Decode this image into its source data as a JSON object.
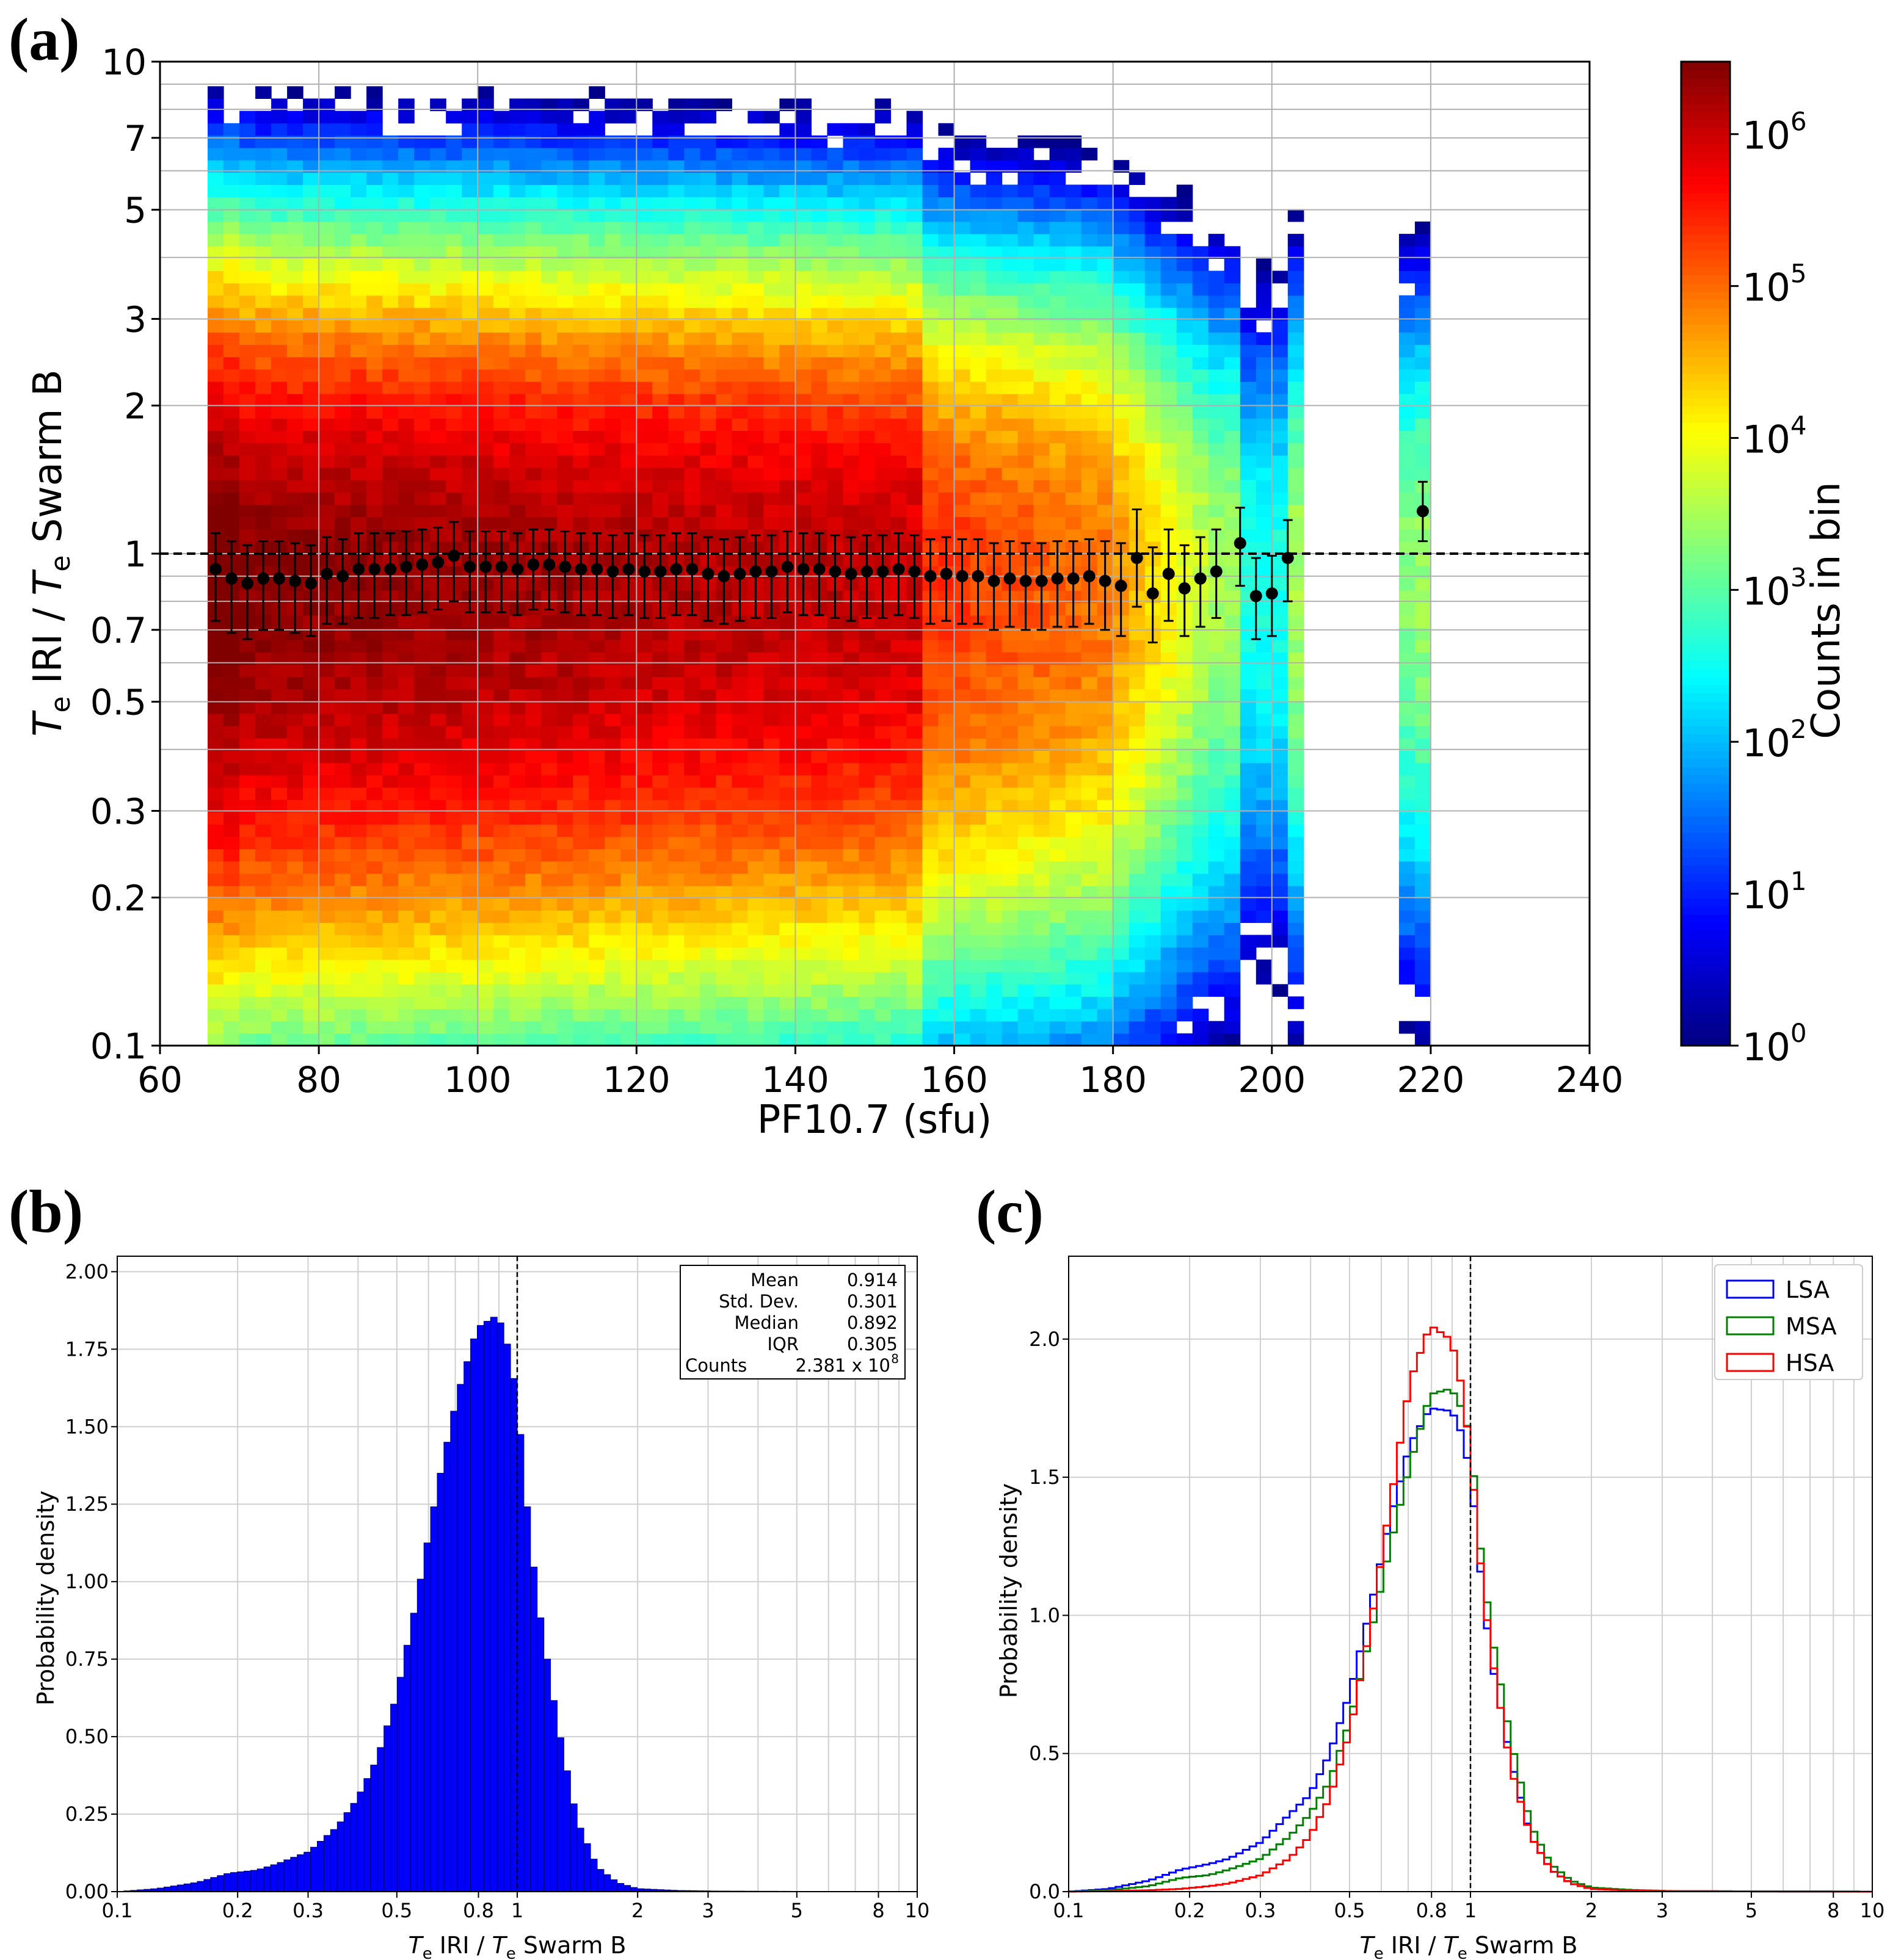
{
  "chart_data": [
    {
      "panel": "(a)",
      "type": "heatmap",
      "title": "",
      "xlabel": "PF10.7 (sfu)",
      "ylabel_main": "T",
      "ylabel_sub": "e",
      "ylabel_mid": " IRI / ",
      "ylabel_main2": "T",
      "ylabel_sub2": "e",
      "ylabel_tail": " Swarm B",
      "xscale": "linear",
      "yscale": "log",
      "xlim": [
        60,
        240
      ],
      "ylim": [
        0.1,
        10
      ],
      "xticks": [
        60,
        80,
        100,
        120,
        140,
        160,
        180,
        200,
        220,
        240
      ],
      "xtick_labels": [
        "60",
        "80",
        "100",
        "120",
        "140",
        "160",
        "180",
        "200",
        "220",
        "240"
      ],
      "yticks": [
        0.1,
        0.2,
        0.3,
        0.5,
        0.7,
        1,
        2,
        3,
        5,
        7,
        10
      ],
      "ytick_labels": [
        "0.1",
        "0.2",
        "0.3",
        "0.5",
        "0.7",
        "1",
        "2",
        "3",
        "5",
        "7",
        "10"
      ],
      "reference_line_y": 1,
      "colorbar": {
        "label": "Counts in bin",
        "scale": "log",
        "range": [
          1,
          3000000
        ],
        "ticks": [
          1,
          10,
          100,
          1000,
          10000,
          100000,
          1000000
        ],
        "tick_mantissa": "10",
        "tick_exponents": [
          "0",
          "1",
          "2",
          "3",
          "4",
          "5",
          "6"
        ],
        "colormap": "jet"
      },
      "data_extent_x": [
        66,
        220
      ],
      "core_ratio_range": [
        0.5,
        2
      ],
      "binned_median": {
        "x": [
          67,
          69,
          71,
          73,
          75,
          77,
          79,
          81,
          83,
          85,
          87,
          89,
          91,
          93,
          95,
          97,
          99,
          101,
          103,
          105,
          107,
          109,
          111,
          113,
          115,
          117,
          119,
          121,
          123,
          125,
          127,
          129,
          131,
          133,
          135,
          137,
          139,
          141,
          143,
          145,
          147,
          149,
          151,
          153,
          155,
          157,
          159,
          161,
          163,
          165,
          167,
          169,
          171,
          173,
          175,
          177,
          179,
          181,
          183,
          185,
          187,
          189,
          191,
          193,
          196,
          198,
          200,
          202,
          219
        ],
        "y": [
          0.93,
          0.89,
          0.87,
          0.89,
          0.89,
          0.88,
          0.87,
          0.91,
          0.9,
          0.93,
          0.93,
          0.93,
          0.94,
          0.95,
          0.96,
          0.99,
          0.94,
          0.94,
          0.94,
          0.93,
          0.95,
          0.95,
          0.94,
          0.93,
          0.93,
          0.92,
          0.93,
          0.92,
          0.92,
          0.93,
          0.93,
          0.91,
          0.9,
          0.91,
          0.92,
          0.92,
          0.94,
          0.93,
          0.93,
          0.92,
          0.91,
          0.92,
          0.92,
          0.93,
          0.92,
          0.9,
          0.91,
          0.9,
          0.9,
          0.88,
          0.89,
          0.88,
          0.88,
          0.89,
          0.89,
          0.9,
          0.88,
          0.86,
          0.98,
          0.83,
          0.91,
          0.85,
          0.89,
          0.92,
          1.05,
          0.82,
          0.83,
          0.98,
          1.22
        ],
        "err_low": [
          0.73,
          0.69,
          0.67,
          0.7,
          0.7,
          0.69,
          0.68,
          0.72,
          0.72,
          0.74,
          0.74,
          0.75,
          0.75,
          0.76,
          0.77,
          0.8,
          0.76,
          0.76,
          0.76,
          0.75,
          0.77,
          0.77,
          0.76,
          0.75,
          0.75,
          0.74,
          0.75,
          0.74,
          0.74,
          0.75,
          0.75,
          0.73,
          0.72,
          0.73,
          0.74,
          0.74,
          0.76,
          0.75,
          0.75,
          0.74,
          0.73,
          0.74,
          0.74,
          0.75,
          0.74,
          0.72,
          0.73,
          0.72,
          0.72,
          0.7,
          0.71,
          0.7,
          0.7,
          0.71,
          0.71,
          0.72,
          0.7,
          0.68,
          0.78,
          0.66,
          0.73,
          0.68,
          0.71,
          0.74,
          0.86,
          0.67,
          0.68,
          0.8,
          1.06
        ],
        "err_high": [
          1.1,
          1.06,
          1.04,
          1.06,
          1.06,
          1.05,
          1.04,
          1.08,
          1.07,
          1.1,
          1.1,
          1.1,
          1.11,
          1.12,
          1.13,
          1.16,
          1.11,
          1.11,
          1.11,
          1.1,
          1.12,
          1.12,
          1.11,
          1.1,
          1.1,
          1.09,
          1.1,
          1.09,
          1.09,
          1.1,
          1.1,
          1.08,
          1.07,
          1.08,
          1.09,
          1.09,
          1.11,
          1.1,
          1.1,
          1.09,
          1.08,
          1.09,
          1.09,
          1.1,
          1.09,
          1.07,
          1.08,
          1.07,
          1.07,
          1.05,
          1.06,
          1.05,
          1.05,
          1.06,
          1.06,
          1.07,
          1.06,
          1.05,
          1.23,
          1.03,
          1.12,
          1.04,
          1.08,
          1.12,
          1.24,
          0.98,
          0.99,
          1.17,
          1.4
        ]
      }
    },
    {
      "panel": "(b)",
      "type": "bar",
      "title": "",
      "xlabel_main": "T",
      "xlabel_sub": "e",
      "xlabel_mid": " IRI / ",
      "xlabel_main2": "T",
      "xlabel_sub2": "e",
      "xlabel_tail": " Swarm B",
      "ylabel": "Probability density",
      "xscale": "log",
      "xlim": [
        0.1,
        10
      ],
      "ylim": [
        0,
        2.05
      ],
      "xticks": [
        0.1,
        0.2,
        0.3,
        0.5,
        0.8,
        1,
        2,
        3,
        5,
        8,
        10
      ],
      "xtick_labels": [
        "0.1",
        "0.2",
        "0.3",
        "0.5",
        "0.8",
        "1",
        "2",
        "3",
        "5",
        "8",
        "10"
      ],
      "yticks": [
        0,
        0.25,
        0.5,
        0.75,
        1,
        1.25,
        1.5,
        1.75,
        2
      ],
      "ytick_labels": [
        "0.00",
        "0.25",
        "0.50",
        "0.75",
        "1.00",
        "1.25",
        "1.50",
        "1.75",
        "2.00"
      ],
      "reference_line_x": 1,
      "bar_color": "#0000ff",
      "stats_box": {
        "rows": [
          {
            "label": "Mean",
            "value": "0.914"
          },
          {
            "label": "Std. Dev.",
            "value": "0.301"
          },
          {
            "label": "Median",
            "value": "0.892"
          },
          {
            "label": "IQR",
            "value": "0.305"
          }
        ],
        "counts_label": "Counts",
        "counts_mantissa": "2.381 x 10",
        "counts_exponent": "8"
      },
      "log_ratio_points": [
        -1,
        -0.9,
        -0.8,
        -0.72,
        -0.65,
        -0.6,
        -0.52,
        -0.45,
        -0.4,
        -0.35,
        -0.3,
        -0.25,
        -0.2,
        -0.15,
        -0.1,
        -0.05,
        -0.03,
        0,
        0.02,
        0.05,
        0.1,
        0.15,
        0.2,
        0.25,
        0.3,
        0.4,
        0.5,
        0.7,
        1
      ],
      "density_points": [
        0,
        0.01,
        0.03,
        0.06,
        0.07,
        0.09,
        0.13,
        0.21,
        0.3,
        0.43,
        0.64,
        0.95,
        1.3,
        1.6,
        1.82,
        1.86,
        1.8,
        1.6,
        1.3,
        0.95,
        0.55,
        0.23,
        0.08,
        0.03,
        0.01,
        0.004,
        0.002,
        0.001,
        0
      ]
    },
    {
      "panel": "(c)",
      "type": "line",
      "title": "",
      "xlabel_main": "T",
      "xlabel_sub": "e",
      "xlabel_mid": " IRI / ",
      "xlabel_main2": "T",
      "xlabel_sub2": "e",
      "xlabel_tail": " Swarm B",
      "ylabel": "Probability density",
      "xscale": "log",
      "xlim": [
        0.1,
        10
      ],
      "ylim": [
        0,
        2.3
      ],
      "xticks": [
        0.1,
        0.2,
        0.3,
        0.5,
        0.8,
        1,
        2,
        3,
        5,
        8,
        10
      ],
      "xtick_labels": [
        "0.1",
        "0.2",
        "0.3",
        "0.5",
        "0.8",
        "1",
        "2",
        "3",
        "5",
        "8",
        "10"
      ],
      "yticks": [
        0,
        0.5,
        1,
        1.5,
        2
      ],
      "ytick_labels": [
        "0.0",
        "0.5",
        "1.0",
        "1.5",
        "2.0"
      ],
      "reference_line_x": 1,
      "legend_position": "top-right",
      "series": [
        {
          "name": "LSA",
          "color": "#0000ff",
          "log_ratio_points": [
            -1,
            -0.9,
            -0.8,
            -0.72,
            -0.65,
            -0.6,
            -0.52,
            -0.45,
            -0.4,
            -0.35,
            -0.3,
            -0.25,
            -0.2,
            -0.15,
            -0.1,
            -0.05,
            -0.03,
            0,
            0.02,
            0.05,
            0.1,
            0.15,
            0.2,
            0.25,
            0.3,
            0.4,
            0.5,
            0.7,
            1
          ],
          "density_points": [
            0,
            0.01,
            0.04,
            0.08,
            0.1,
            0.12,
            0.18,
            0.28,
            0.35,
            0.5,
            0.72,
            1.02,
            1.35,
            1.62,
            1.75,
            1.74,
            1.7,
            1.52,
            1.22,
            0.85,
            0.48,
            0.2,
            0.08,
            0.03,
            0.01,
            0.005,
            0.002,
            0.001,
            0
          ]
        },
        {
          "name": "MSA",
          "color": "#008000",
          "log_ratio_points": [
            -1,
            -0.9,
            -0.8,
            -0.72,
            -0.65,
            -0.6,
            -0.52,
            -0.45,
            -0.4,
            -0.35,
            -0.3,
            -0.25,
            -0.2,
            -0.15,
            -0.1,
            -0.05,
            -0.03,
            0,
            0.02,
            0.05,
            0.1,
            0.15,
            0.2,
            0.25,
            0.3,
            0.4,
            0.5,
            0.7,
            1
          ],
          "density_points": [
            0,
            0.005,
            0.02,
            0.05,
            0.06,
            0.08,
            0.12,
            0.2,
            0.28,
            0.4,
            0.62,
            0.92,
            1.25,
            1.55,
            1.8,
            1.82,
            1.78,
            1.65,
            1.3,
            0.95,
            0.55,
            0.24,
            0.1,
            0.04,
            0.015,
            0.006,
            0.002,
            0.001,
            0
          ]
        },
        {
          "name": "HSA",
          "color": "#ff0000",
          "log_ratio_points": [
            -1,
            -0.9,
            -0.8,
            -0.72,
            -0.65,
            -0.6,
            -0.52,
            -0.45,
            -0.4,
            -0.35,
            -0.3,
            -0.25,
            -0.2,
            -0.15,
            -0.1,
            -0.05,
            -0.03,
            0,
            0.02,
            0.05,
            0.1,
            0.15,
            0.2,
            0.25,
            0.3,
            0.4,
            0.5,
            0.7,
            1
          ],
          "density_points": [
            0,
            0.002,
            0.005,
            0.01,
            0.02,
            0.03,
            0.06,
            0.12,
            0.2,
            0.34,
            0.58,
            0.95,
            1.4,
            1.85,
            2.05,
            2.0,
            1.9,
            1.6,
            1.25,
            0.88,
            0.45,
            0.2,
            0.08,
            0.03,
            0.01,
            0.004,
            0.002,
            0.001,
            0
          ]
        }
      ]
    }
  ]
}
